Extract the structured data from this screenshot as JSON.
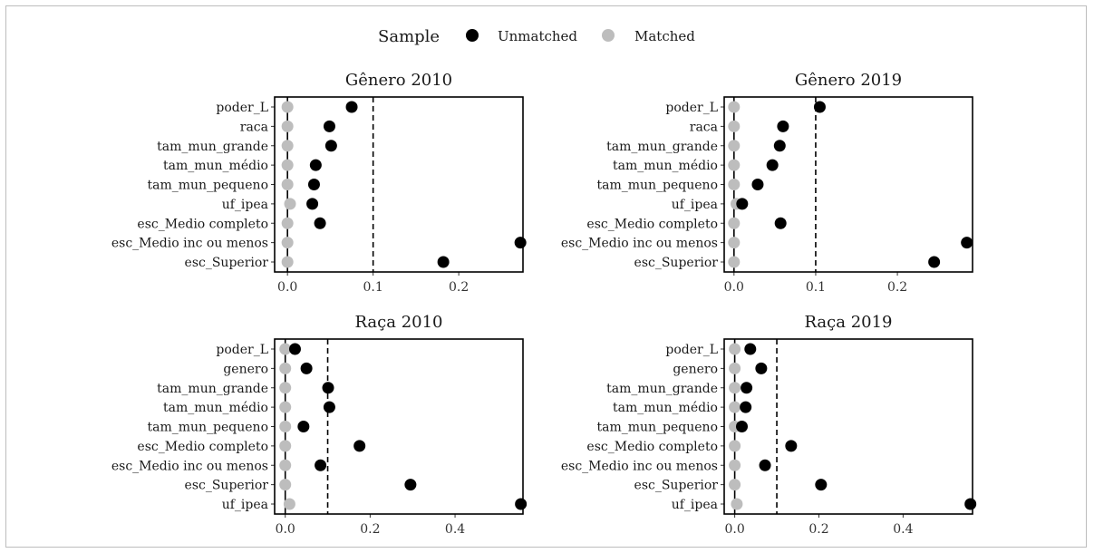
{
  "legend": {
    "title": "Sample",
    "items": [
      {
        "label": "Unmatched",
        "color": "#000000"
      },
      {
        "label": "Matched",
        "color": "#bdbdbd"
      }
    ]
  },
  "chart_data": [
    {
      "type": "scatter",
      "title": "Gênero 2010",
      "xlim": [
        -0.015,
        0.275
      ],
      "xticks": [
        0.0,
        0.1,
        0.2
      ],
      "xtick_labels": [
        "0.0",
        "0.1",
        "0.2"
      ],
      "threshold": 0.1,
      "variables": [
        "poder_L",
        "raca",
        "tam_mun_grande",
        "tam_mun_médio",
        "tam_mun_pequeno",
        "uf_ipea",
        "esc_Medio completo",
        "esc_Medio inc ou menos",
        "esc_Superior"
      ],
      "series": [
        {
          "name": "Unmatched",
          "values": [
            0.075,
            0.049,
            0.051,
            0.033,
            0.031,
            0.029,
            0.038,
            0.272,
            0.182
          ]
        },
        {
          "name": "Matched",
          "values": [
            0.0,
            0.0,
            0.0,
            0.0,
            0.0,
            0.003,
            0.0,
            0.0,
            0.0
          ]
        }
      ]
    },
    {
      "type": "scatter",
      "title": "Gênero 2019",
      "xlim": [
        -0.012,
        0.292
      ],
      "xticks": [
        0.0,
        0.1,
        0.2
      ],
      "xtick_labels": [
        "0.0",
        "0.1",
        "0.2"
      ],
      "threshold": 0.1,
      "variables": [
        "poder_L",
        "raca",
        "tam_mun_grande",
        "tam_mun_médio",
        "tam_mun_pequeno",
        "uf_ipea",
        "esc_Medio completo",
        "esc_Medio inc ou menos",
        "esc_Superior"
      ],
      "series": [
        {
          "name": "Unmatched",
          "values": [
            0.105,
            0.06,
            0.056,
            0.047,
            0.029,
            0.01,
            0.057,
            0.285,
            0.245
          ]
        },
        {
          "name": "Matched",
          "values": [
            0.0,
            0.0,
            0.0,
            0.0,
            0.0,
            0.003,
            0.0,
            0.0,
            0.0
          ]
        }
      ]
    },
    {
      "type": "scatter",
      "title": "Raça 2010",
      "xlim": [
        -0.025,
        0.56
      ],
      "xticks": [
        0.0,
        0.2,
        0.4
      ],
      "xtick_labels": [
        "0.0",
        "0.2",
        "0.4"
      ],
      "threshold": 0.1,
      "variables": [
        "poder_L",
        "genero",
        "tam_mun_grande",
        "tam_mun_médio",
        "tam_mun_pequeno",
        "esc_Medio completo",
        "esc_Medio inc ou menos",
        "esc_Superior",
        "uf_ipea"
      ],
      "series": [
        {
          "name": "Unmatched",
          "values": [
            0.023,
            0.05,
            0.101,
            0.104,
            0.043,
            0.175,
            0.083,
            0.295,
            0.555
          ]
        },
        {
          "name": "Matched",
          "values": [
            0.0,
            0.0,
            0.0,
            0.0,
            0.0,
            0.0,
            0.0,
            0.0,
            0.01
          ]
        }
      ]
    },
    {
      "type": "scatter",
      "title": "Raça 2019",
      "xlim": [
        -0.025,
        0.565
      ],
      "xticks": [
        0.0,
        0.2,
        0.4
      ],
      "xtick_labels": [
        "0.0",
        "0.2",
        "0.4"
      ],
      "threshold": 0.1,
      "variables": [
        "poder_L",
        "genero",
        "tam_mun_grande",
        "tam_mun_médio",
        "tam_mun_pequeno",
        "esc_Medio completo",
        "esc_Medio inc ou menos",
        "esc_Superior",
        "uf_ipea"
      ],
      "series": [
        {
          "name": "Unmatched",
          "values": [
            0.037,
            0.063,
            0.028,
            0.026,
            0.017,
            0.134,
            0.072,
            0.205,
            0.56
          ]
        },
        {
          "name": "Matched",
          "values": [
            0.0,
            0.0,
            0.0,
            0.0,
            0.0,
            0.0,
            0.0,
            0.0,
            0.005
          ]
        }
      ]
    }
  ]
}
